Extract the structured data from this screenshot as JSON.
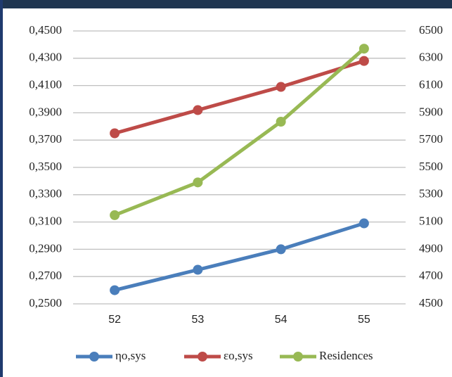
{
  "chart_data": {
    "type": "line",
    "categories": [
      "52",
      "53",
      "54",
      "55"
    ],
    "series": [
      {
        "name": "ηo,sys",
        "color": "#4a7ebb",
        "values": [
          0.26,
          0.275,
          0.29,
          0.309
        ]
      },
      {
        "name": "εo,sys",
        "color": "#be4b48",
        "values": [
          0.375,
          0.392,
          0.409,
          0.428
        ]
      },
      {
        "name": "Residences",
        "color": "#98b954",
        "axis": "y2",
        "values": [
          5150,
          5390,
          5835,
          6370
        ]
      }
    ],
    "ylim": [
      0.25,
      0.45
    ],
    "yticks": [
      {
        "value": 0.25,
        "label": "0,2500"
      },
      {
        "value": 0.27,
        "label": "0,2700"
      },
      {
        "value": 0.29,
        "label": "0,2900"
      },
      {
        "value": 0.31,
        "label": "0,3100"
      },
      {
        "value": 0.33,
        "label": "0,3300"
      },
      {
        "value": 0.35,
        "label": "0,3500"
      },
      {
        "value": 0.37,
        "label": "0,3700"
      },
      {
        "value": 0.39,
        "label": "0,3900"
      },
      {
        "value": 0.41,
        "label": "0,4100"
      },
      {
        "value": 0.43,
        "label": "0,4300"
      },
      {
        "value": 0.45,
        "label": "0,4500"
      }
    ],
    "y2lim": [
      4500,
      6500
    ],
    "y2ticks": [
      4500,
      4700,
      4900,
      5100,
      5300,
      5500,
      5700,
      5900,
      6100,
      6300,
      6500
    ],
    "grid": true
  }
}
